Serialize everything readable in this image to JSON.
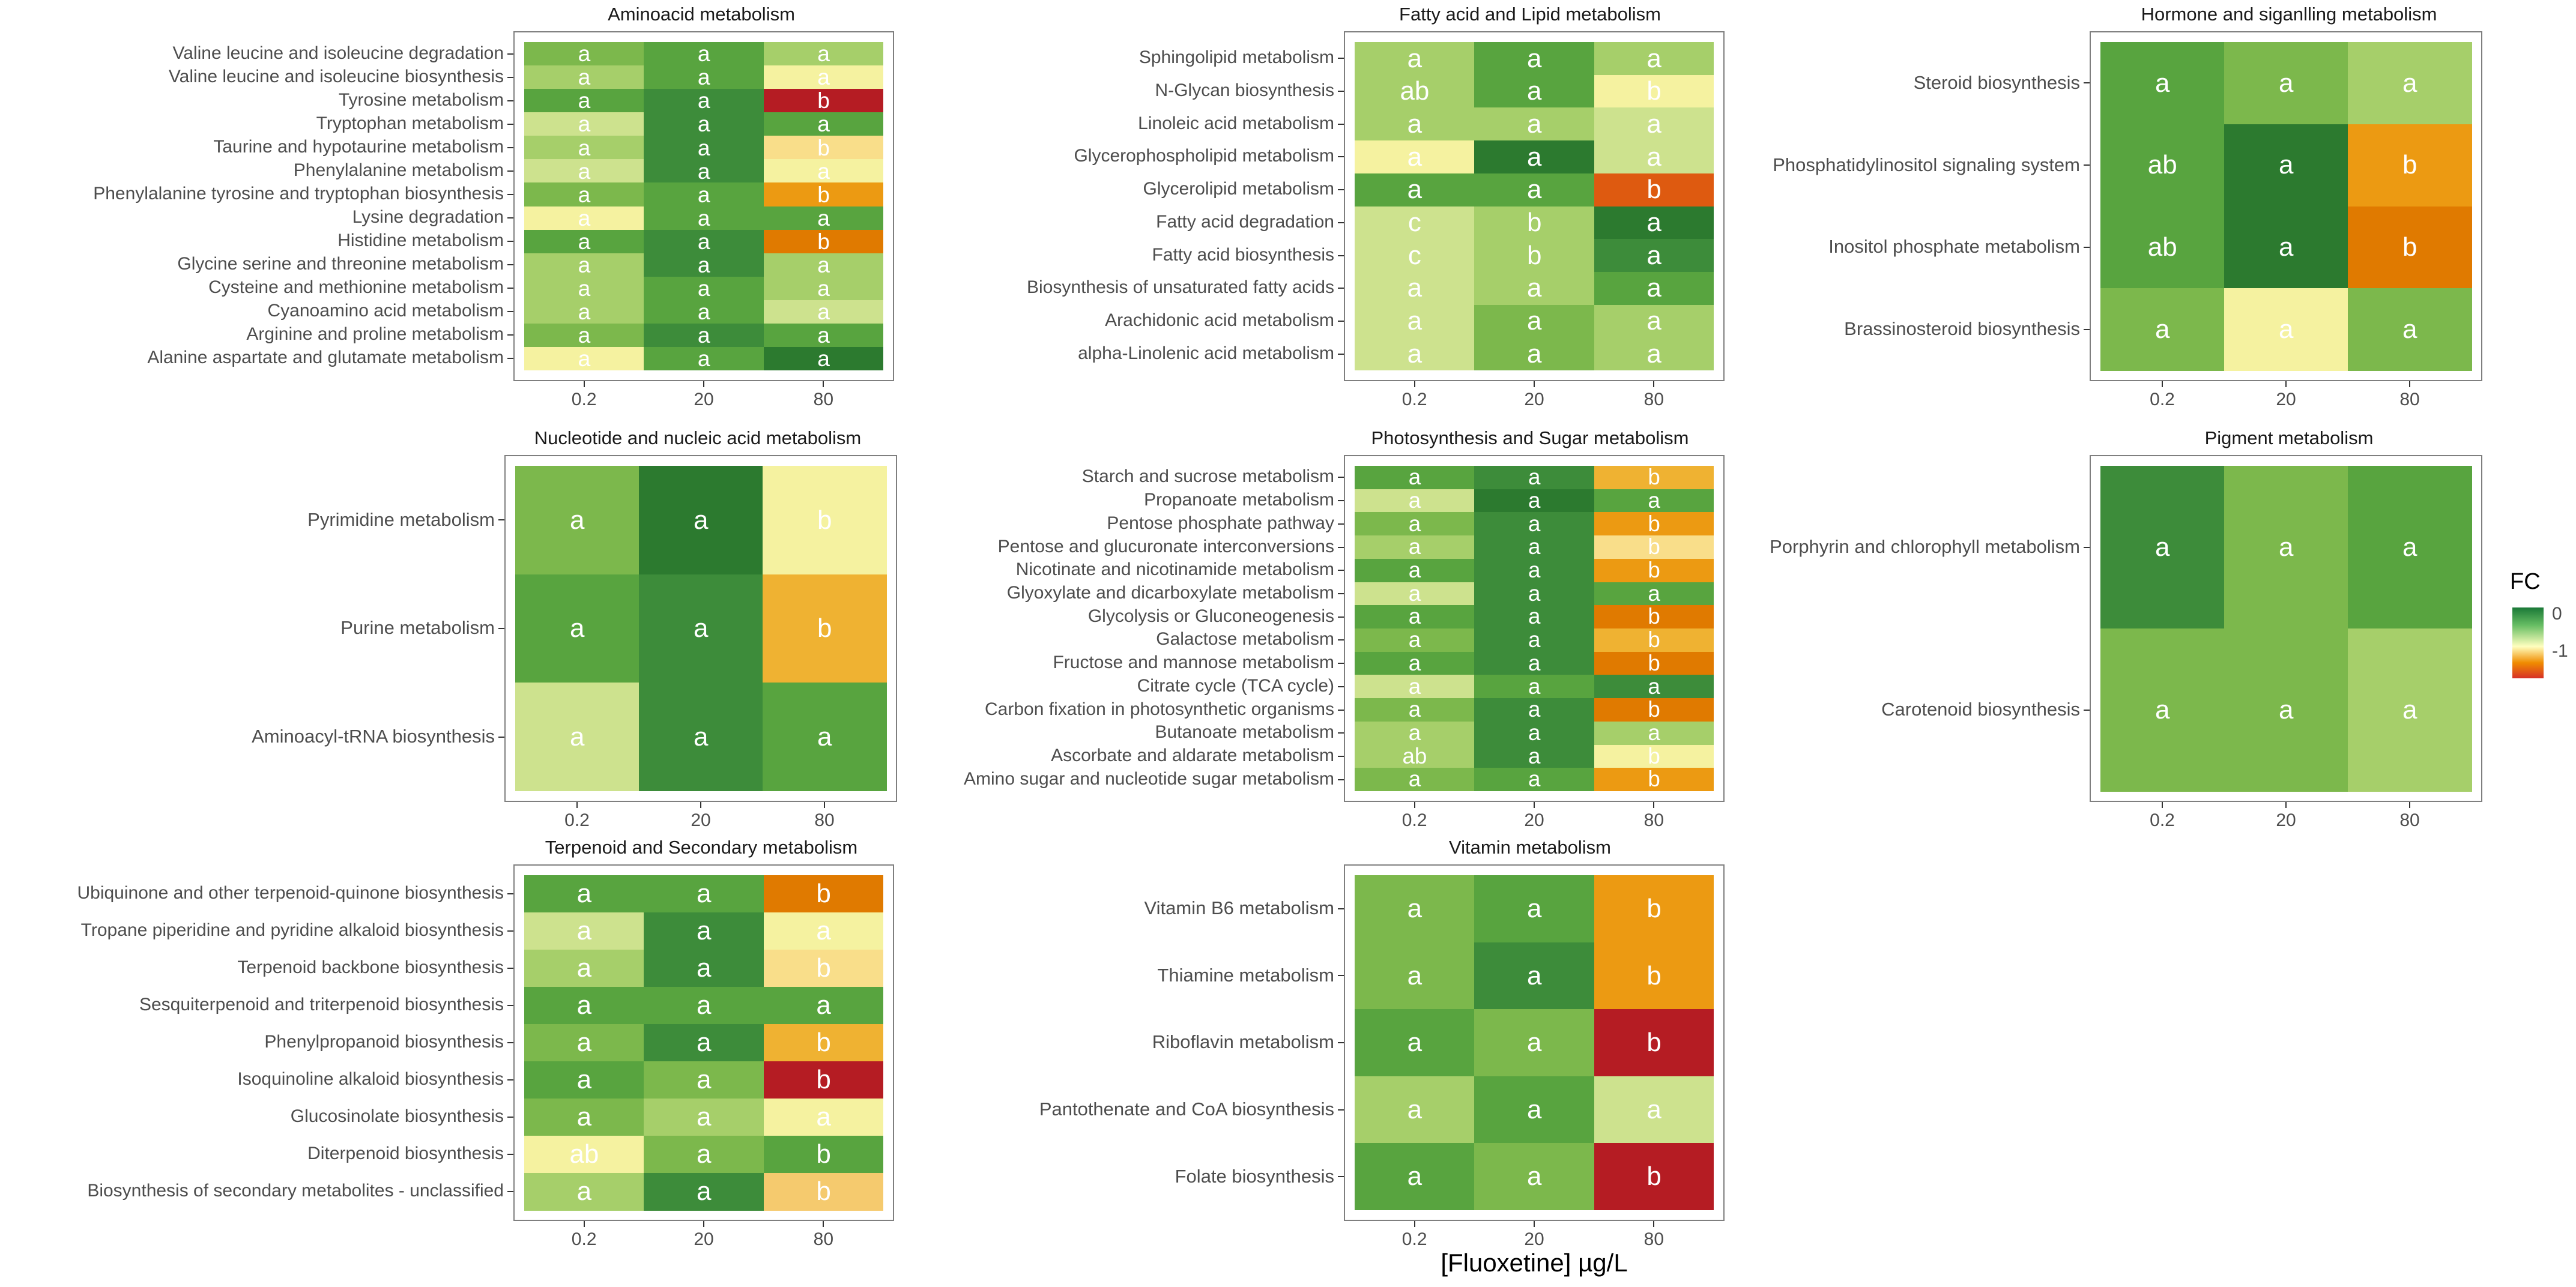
{
  "x_axis_title": "[Fluoxetine] µg/L",
  "legend": {
    "title": "FC",
    "ticks": [
      "0",
      "-1"
    ]
  },
  "colors": {
    "dk": "#2c7a2f",
    "gd": "#3d8c3a",
    "g": "#58a43f",
    "lg": "#7cb84c",
    "llg": "#a6cf6a",
    "pg": "#cde28e",
    "pl": "#f5f2a0",
    "py": "#f9de8a",
    "ly": "#f5ca6e",
    "yo": "#efb232",
    "o": "#ec9a12",
    "do": "#e07a00",
    "ro": "#de5a10",
    "r": "#b51c23"
  },
  "chart_data": [
    {
      "type": "heatmap",
      "title": "Aminoacid metabolism",
      "categories": [
        "0.2",
        "20",
        "80"
      ],
      "rows": [
        {
          "label": "Valine leucine and isoleucine degradation",
          "colors": [
            "lg",
            "g",
            "llg"
          ],
          "letters": [
            "a",
            "a",
            "a"
          ]
        },
        {
          "label": "Valine leucine and isoleucine biosynthesis",
          "colors": [
            "llg",
            "g",
            "pl"
          ],
          "letters": [
            "a",
            "a",
            "a"
          ]
        },
        {
          "label": "Tyrosine metabolism",
          "colors": [
            "g",
            "gd",
            "r"
          ],
          "letters": [
            "a",
            "a",
            "b"
          ]
        },
        {
          "label": "Tryptophan metabolism",
          "colors": [
            "pg",
            "gd",
            "g"
          ],
          "letters": [
            "a",
            "a",
            "a"
          ]
        },
        {
          "label": "Taurine and hypotaurine metabolism",
          "colors": [
            "llg",
            "gd",
            "py"
          ],
          "letters": [
            "a",
            "a",
            "b"
          ]
        },
        {
          "label": "Phenylalanine metabolism",
          "colors": [
            "pg",
            "gd",
            "pl"
          ],
          "letters": [
            "a",
            "a",
            "a"
          ]
        },
        {
          "label": "Phenylalanine  tyrosine and tryptophan biosynthesis",
          "colors": [
            "lg",
            "g",
            "o"
          ],
          "letters": [
            "a",
            "a",
            "b"
          ]
        },
        {
          "label": "Lysine degradation",
          "colors": [
            "pl",
            "g",
            "g"
          ],
          "letters": [
            "a",
            "a",
            "a"
          ]
        },
        {
          "label": "Histidine metabolism",
          "colors": [
            "g",
            "gd",
            "do"
          ],
          "letters": [
            "a",
            "a",
            "b"
          ]
        },
        {
          "label": "Glycine serine and threonine metabolism",
          "colors": [
            "llg",
            "gd",
            "llg"
          ],
          "letters": [
            "a",
            "a",
            "a"
          ]
        },
        {
          "label": "Cysteine and methionine metabolism",
          "colors": [
            "llg",
            "g",
            "llg"
          ],
          "letters": [
            "a",
            "a",
            "a"
          ]
        },
        {
          "label": "Cyanoamino acid metabolism",
          "colors": [
            "llg",
            "g",
            "pg"
          ],
          "letters": [
            "a",
            "a",
            "a"
          ]
        },
        {
          "label": "Arginine and proline metabolism",
          "colors": [
            "lg",
            "gd",
            "g"
          ],
          "letters": [
            "a",
            "a",
            "a"
          ]
        },
        {
          "label": "Alanine aspartate and glutamate metabolism",
          "colors": [
            "pl",
            "g",
            "dk"
          ],
          "letters": [
            "a",
            "a",
            "a"
          ]
        }
      ]
    },
    {
      "type": "heatmap",
      "title": "Fatty acid and Lipid metabolism",
      "categories": [
        "0.2",
        "20",
        "80"
      ],
      "rows": [
        {
          "label": "Sphingolipid metabolism",
          "colors": [
            "llg",
            "g",
            "llg"
          ],
          "letters": [
            "a",
            "a",
            "a"
          ]
        },
        {
          "label": "N-Glycan biosynthesis",
          "colors": [
            "llg",
            "g",
            "pl"
          ],
          "letters": [
            "ab",
            "a",
            "b"
          ]
        },
        {
          "label": "Linoleic acid metabolism",
          "colors": [
            "llg",
            "llg",
            "pg"
          ],
          "letters": [
            "a",
            "a",
            "a"
          ]
        },
        {
          "label": "Glycerophospholipid metabolism",
          "colors": [
            "pl",
            "dk",
            "pg"
          ],
          "letters": [
            "a",
            "a",
            "a"
          ]
        },
        {
          "label": "Glycerolipid metabolism",
          "colors": [
            "g",
            "g",
            "ro"
          ],
          "letters": [
            "a",
            "a",
            "b"
          ]
        },
        {
          "label": "Fatty acid degradation",
          "colors": [
            "pg",
            "llg",
            "dk"
          ],
          "letters": [
            "c",
            "b",
            "a"
          ]
        },
        {
          "label": "Fatty acid biosynthesis",
          "colors": [
            "pg",
            "llg",
            "gd"
          ],
          "letters": [
            "c",
            "b",
            "a"
          ]
        },
        {
          "label": "Biosynthesis of unsaturated fatty acids",
          "colors": [
            "pg",
            "llg",
            "g"
          ],
          "letters": [
            "a",
            "a",
            "a"
          ]
        },
        {
          "label": "Arachidonic acid metabolism",
          "colors": [
            "pg",
            "lg",
            "llg"
          ],
          "letters": [
            "a",
            "a",
            "a"
          ]
        },
        {
          "label": "alpha-Linolenic acid metabolism",
          "colors": [
            "pg",
            "lg",
            "llg"
          ],
          "letters": [
            "a",
            "a",
            "a"
          ]
        }
      ]
    },
    {
      "type": "heatmap",
      "title": "Hormone and siganlling metabolism",
      "categories": [
        "0.2",
        "20",
        "80"
      ],
      "rows": [
        {
          "label": "Steroid biosynthesis",
          "colors": [
            "g",
            "lg",
            "llg"
          ],
          "letters": [
            "a",
            "a",
            "a"
          ]
        },
        {
          "label": "Phosphatidylinositol signaling system",
          "colors": [
            "g",
            "dk",
            "o"
          ],
          "letters": [
            "ab",
            "a",
            "b"
          ]
        },
        {
          "label": "Inositol phosphate metabolism",
          "colors": [
            "g",
            "dk",
            "do"
          ],
          "letters": [
            "ab",
            "a",
            "b"
          ]
        },
        {
          "label": "Brassinosteroid biosynthesis",
          "colors": [
            "lg",
            "pl",
            "lg"
          ],
          "letters": [
            "a",
            "a",
            "a"
          ]
        }
      ]
    },
    {
      "type": "heatmap",
      "title": "Nucleotide and nucleic acid metabolism",
      "categories": [
        "0.2",
        "20",
        "80"
      ],
      "rows": [
        {
          "label": "Pyrimidine metabolism",
          "colors": [
            "lg",
            "dk",
            "pl"
          ],
          "letters": [
            "a",
            "a",
            "b"
          ]
        },
        {
          "label": "Purine metabolism",
          "colors": [
            "g",
            "gd",
            "yo"
          ],
          "letters": [
            "a",
            "a",
            "b"
          ]
        },
        {
          "label": "Aminoacyl-tRNA biosynthesis",
          "colors": [
            "pg",
            "gd",
            "g"
          ],
          "letters": [
            "a",
            "a",
            "a"
          ]
        }
      ]
    },
    {
      "type": "heatmap",
      "title": "Photosynthesis and Sugar metabolism",
      "categories": [
        "0.2",
        "20",
        "80"
      ],
      "rows": [
        {
          "label": "Starch and sucrose metabolism",
          "colors": [
            "g",
            "gd",
            "yo"
          ],
          "letters": [
            "a",
            "a",
            "b"
          ]
        },
        {
          "label": "Propanoate metabolism",
          "colors": [
            "pg",
            "dk",
            "g"
          ],
          "letters": [
            "a",
            "a",
            "a"
          ]
        },
        {
          "label": "Pentose phosphate pathway",
          "colors": [
            "lg",
            "gd",
            "o"
          ],
          "letters": [
            "a",
            "a",
            "b"
          ]
        },
        {
          "label": "Pentose and glucuronate interconversions",
          "colors": [
            "llg",
            "gd",
            "py"
          ],
          "letters": [
            "a",
            "a",
            "b"
          ]
        },
        {
          "label": "Nicotinate and nicotinamide metabolism",
          "colors": [
            "g",
            "gd",
            "o"
          ],
          "letters": [
            "a",
            "a",
            "b"
          ]
        },
        {
          "label": "Glyoxylate and dicarboxylate metabolism",
          "colors": [
            "pg",
            "gd",
            "g"
          ],
          "letters": [
            "a",
            "a",
            "a"
          ]
        },
        {
          "label": "Glycolysis or Gluconeogenesis",
          "colors": [
            "g",
            "gd",
            "do"
          ],
          "letters": [
            "a",
            "a",
            "b"
          ]
        },
        {
          "label": "Galactose metabolism",
          "colors": [
            "lg",
            "gd",
            "yo"
          ],
          "letters": [
            "a",
            "a",
            "b"
          ]
        },
        {
          "label": "Fructose and mannose metabolism",
          "colors": [
            "g",
            "gd",
            "do"
          ],
          "letters": [
            "a",
            "a",
            "b"
          ]
        },
        {
          "label": "Citrate cycle (TCA cycle)",
          "colors": [
            "pg",
            "g",
            "gd"
          ],
          "letters": [
            "a",
            "a",
            "a"
          ]
        },
        {
          "label": "Carbon fixation in photosynthetic organisms",
          "colors": [
            "lg",
            "gd",
            "do"
          ],
          "letters": [
            "a",
            "a",
            "b"
          ]
        },
        {
          "label": "Butanoate metabolism",
          "colors": [
            "llg",
            "gd",
            "llg"
          ],
          "letters": [
            "a",
            "a",
            "a"
          ]
        },
        {
          "label": "Ascorbate and aldarate metabolism",
          "colors": [
            "llg",
            "gd",
            "pl"
          ],
          "letters": [
            "ab",
            "a",
            "b"
          ]
        },
        {
          "label": "Amino sugar and nucleotide sugar metabolism",
          "colors": [
            "lg",
            "g",
            "o"
          ],
          "letters": [
            "a",
            "a",
            "b"
          ]
        }
      ]
    },
    {
      "type": "heatmap",
      "title": "Pigment metabolism",
      "categories": [
        "0.2",
        "20",
        "80"
      ],
      "rows": [
        {
          "label": "Porphyrin and chlorophyll metabolism",
          "colors": [
            "gd",
            "lg",
            "g"
          ],
          "letters": [
            "a",
            "a",
            "a"
          ]
        },
        {
          "label": "Carotenoid biosynthesis",
          "colors": [
            "lg",
            "lg",
            "llg"
          ],
          "letters": [
            "a",
            "a",
            "a"
          ]
        }
      ]
    },
    {
      "type": "heatmap",
      "title": "Terpenoid and Secondary metabolism",
      "categories": [
        "0.2",
        "20",
        "80"
      ],
      "rows": [
        {
          "label": "Ubiquinone and other terpenoid-quinone biosynthesis",
          "colors": [
            "g",
            "g",
            "do"
          ],
          "letters": [
            "a",
            "a",
            "b"
          ]
        },
        {
          "label": "Tropane piperidine and pyridine alkaloid biosynthesis",
          "colors": [
            "pg",
            "gd",
            "pl"
          ],
          "letters": [
            "a",
            "a",
            "a"
          ]
        },
        {
          "label": "Terpenoid backbone biosynthesis",
          "colors": [
            "llg",
            "gd",
            "py"
          ],
          "letters": [
            "a",
            "a",
            "b"
          ]
        },
        {
          "label": "Sesquiterpenoid and triterpenoid biosynthesis",
          "colors": [
            "g",
            "g",
            "g"
          ],
          "letters": [
            "a",
            "a",
            "a"
          ]
        },
        {
          "label": "Phenylpropanoid biosynthesis",
          "colors": [
            "lg",
            "gd",
            "yo"
          ],
          "letters": [
            "a",
            "a",
            "b"
          ]
        },
        {
          "label": "Isoquinoline alkaloid biosynthesis",
          "colors": [
            "g",
            "lg",
            "r"
          ],
          "letters": [
            "a",
            "a",
            "b"
          ]
        },
        {
          "label": "Glucosinolate biosynthesis",
          "colors": [
            "lg",
            "llg",
            "pl"
          ],
          "letters": [
            "a",
            "a",
            "a"
          ]
        },
        {
          "label": "Diterpenoid biosynthesis",
          "colors": [
            "pl",
            "lg",
            "g"
          ],
          "letters": [
            "ab",
            "a",
            "b"
          ]
        },
        {
          "label": "Biosynthesis of secondary metabolites - unclassified",
          "colors": [
            "llg",
            "gd",
            "ly"
          ],
          "letters": [
            "a",
            "a",
            "b"
          ]
        }
      ]
    },
    {
      "type": "heatmap",
      "title": "Vitamin metabolism",
      "categories": [
        "0.2",
        "20",
        "80"
      ],
      "rows": [
        {
          "label": "Vitamin B6 metabolism",
          "colors": [
            "lg",
            "g",
            "o"
          ],
          "letters": [
            "a",
            "a",
            "b"
          ]
        },
        {
          "label": "Thiamine metabolism",
          "colors": [
            "lg",
            "gd",
            "o"
          ],
          "letters": [
            "a",
            "a",
            "b"
          ]
        },
        {
          "label": "Riboflavin metabolism",
          "colors": [
            "g",
            "lg",
            "r"
          ],
          "letters": [
            "a",
            "a",
            "b"
          ]
        },
        {
          "label": "Pantothenate and CoA biosynthesis",
          "colors": [
            "llg",
            "g",
            "pg"
          ],
          "letters": [
            "a",
            "a",
            "a"
          ]
        },
        {
          "label": "Folate biosynthesis",
          "colors": [
            "g",
            "lg",
            "r"
          ],
          "letters": [
            "a",
            "a",
            "b"
          ]
        }
      ]
    }
  ]
}
